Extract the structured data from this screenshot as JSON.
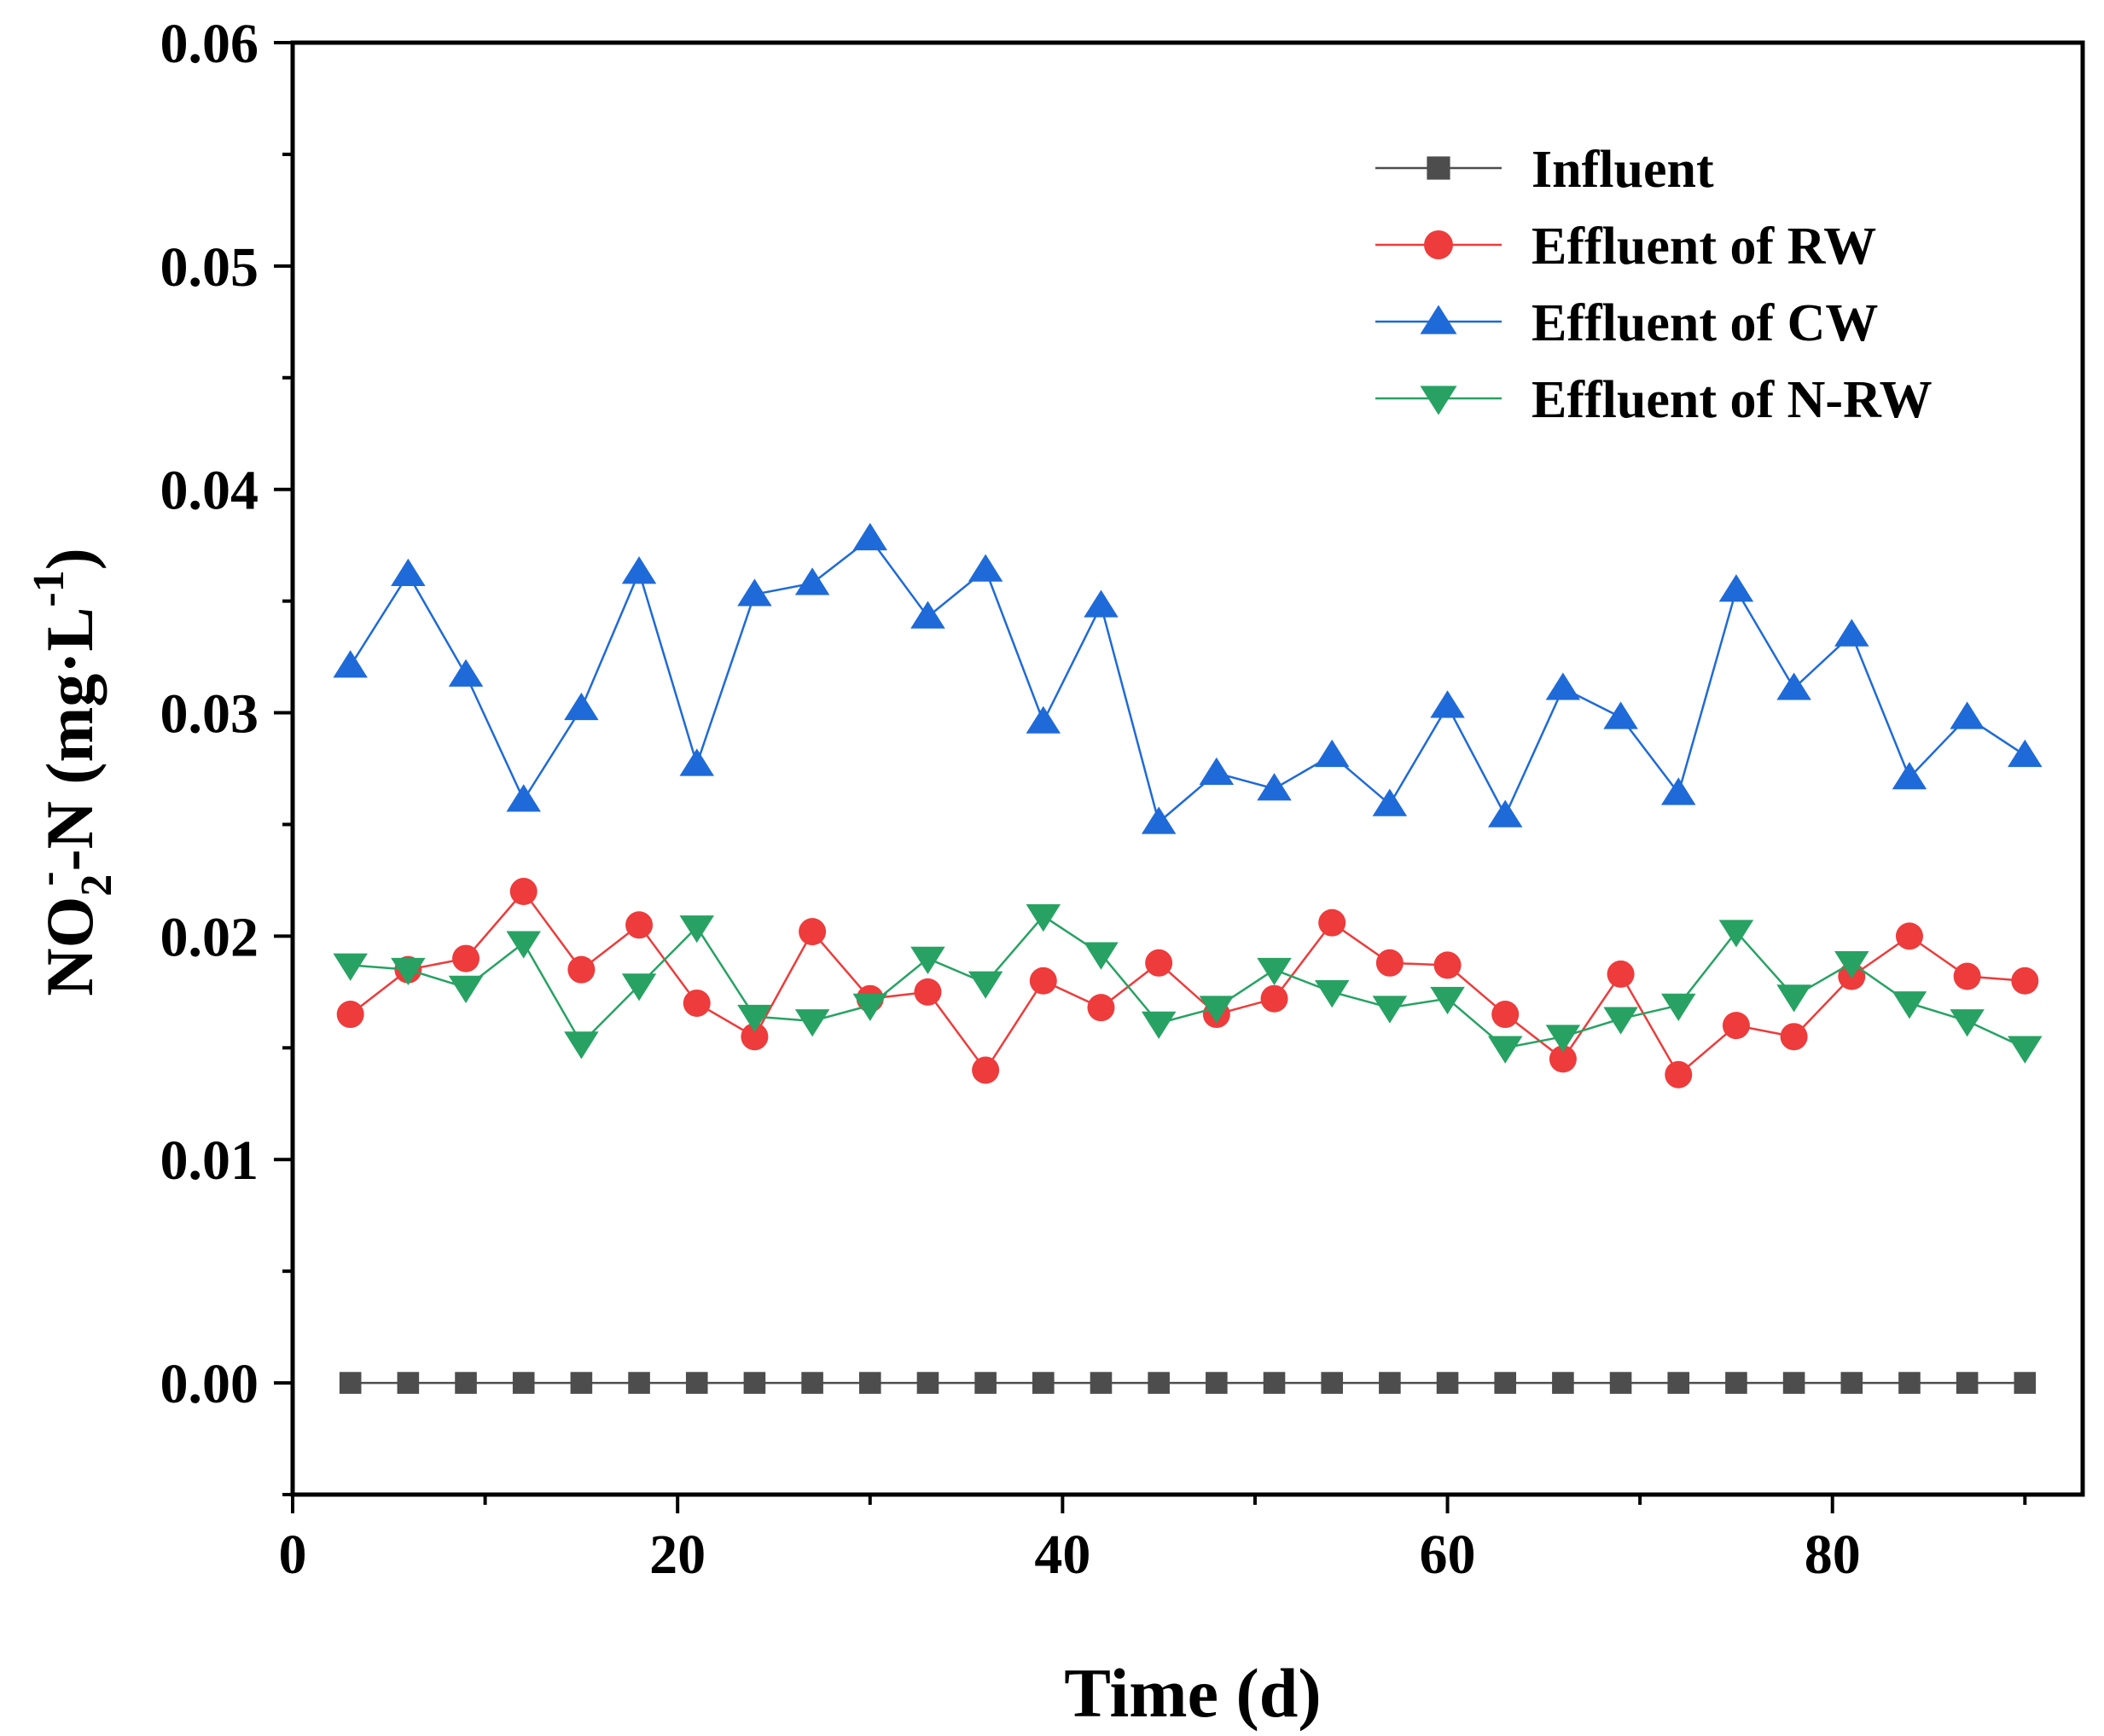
{
  "chart_data": {
    "type": "line",
    "title": "",
    "xlabel": "Time (d)",
    "ylabel": {
      "base": "NO",
      "sub": "2",
      "sup": "-",
      "mid": "-N (mg·L",
      "sup2": "-1",
      "end": ")"
    },
    "xlim": [
      0,
      93
    ],
    "ylim": [
      -0.005,
      0.06
    ],
    "xticks": [
      0,
      20,
      40,
      60,
      80
    ],
    "xtick_labels": [
      "0",
      "20",
      "40",
      "60",
      "80"
    ],
    "yticks": [
      0.0,
      0.01,
      0.02,
      0.03,
      0.04,
      0.05,
      0.06
    ],
    "ytick_labels": [
      "0.00",
      "0.01",
      "0.02",
      "0.03",
      "0.04",
      "0.05",
      "0.06"
    ],
    "legend_position": "top-right",
    "x": [
      3,
      6,
      9,
      12,
      15,
      18,
      21,
      24,
      27,
      30,
      33,
      36,
      39,
      42,
      45,
      48,
      51,
      54,
      57,
      60,
      63,
      66,
      69,
      72,
      75,
      78,
      81,
      84,
      87,
      90
    ],
    "series": [
      {
        "name": "Influent",
        "marker": "square",
        "color": "#4d4d4d",
        "values": [
          0,
          0,
          0,
          0,
          0,
          0,
          0,
          0,
          0,
          0,
          0,
          0,
          0,
          0,
          0,
          0,
          0,
          0,
          0,
          0,
          0,
          0,
          0,
          0,
          0,
          0,
          0,
          0,
          0,
          0
        ]
      },
      {
        "name": "Effluent of RW",
        "marker": "circle",
        "color": "#ee3b3b",
        "values": [
          0.0165,
          0.0185,
          0.019,
          0.022,
          0.0185,
          0.0205,
          0.017,
          0.0155,
          0.0202,
          0.0172,
          0.0175,
          0.014,
          0.018,
          0.0168,
          0.0188,
          0.0165,
          0.0172,
          0.0206,
          0.0188,
          0.0187,
          0.0165,
          0.0145,
          0.0183,
          0.0138,
          0.016,
          0.0155,
          0.0182,
          0.02,
          0.0182,
          0.018
        ]
      },
      {
        "name": "Effluent of CW",
        "marker": "triangle-up",
        "color": "#1e6ad8",
        "values": [
          0.0321,
          0.0362,
          0.0317,
          0.0261,
          0.0302,
          0.0363,
          0.0277,
          0.0353,
          0.0358,
          0.0378,
          0.0343,
          0.0364,
          0.0296,
          0.0348,
          0.0251,
          0.0273,
          0.0266,
          0.0281,
          0.0259,
          0.0303,
          0.0254,
          0.0311,
          0.0298,
          0.0264,
          0.0355,
          0.0311,
          0.0335,
          0.0271,
          0.0298,
          0.0281
        ]
      },
      {
        "name": "Effluent of N-RW",
        "marker": "triangle-down",
        "color": "#27a263",
        "values": [
          0.0187,
          0.0185,
          0.0177,
          0.0197,
          0.0152,
          0.0178,
          0.0204,
          0.0164,
          0.0162,
          0.0169,
          0.019,
          0.0179,
          0.0209,
          0.0192,
          0.0161,
          0.0168,
          0.0185,
          0.0175,
          0.0168,
          0.0172,
          0.015,
          0.0155,
          0.0163,
          0.0169,
          0.0202,
          0.0173,
          0.0188,
          0.017,
          0.0162,
          0.015
        ]
      }
    ]
  }
}
